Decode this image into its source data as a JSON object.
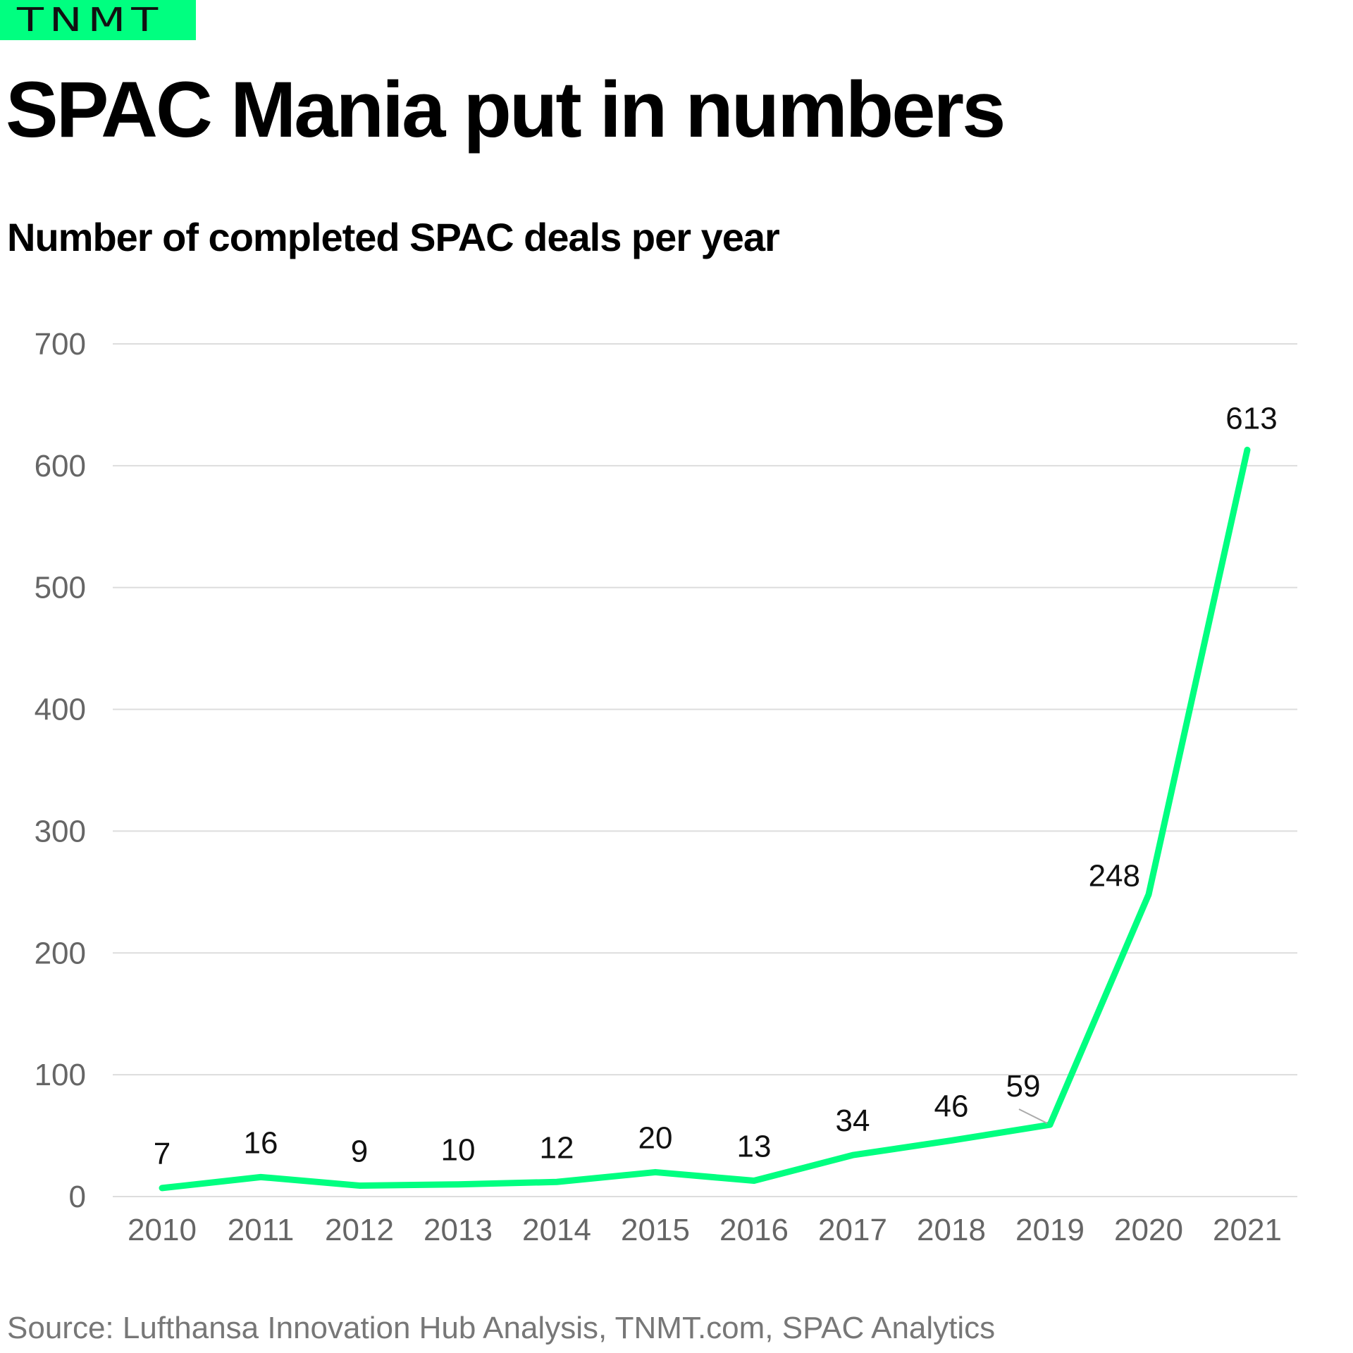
{
  "logo": {
    "text": "TNMT",
    "bg_color": "#00ff80"
  },
  "title": "SPAC Mania put in numbers",
  "subtitle": "Number of completed SPAC deals per year",
  "source": "Source: Lufthansa Innovation Hub Analysis, TNMT.com, SPAC Analytics",
  "colors": {
    "line": "#00ff80",
    "grid": "#dddddd",
    "axis_text": "#666666",
    "label_text": "#111111"
  },
  "chart_data": {
    "type": "line",
    "title": "SPAC Mania put in numbers",
    "subtitle": "Number of completed SPAC deals per year",
    "xlabel": "",
    "ylabel": "",
    "categories": [
      "2010",
      "2011",
      "2012",
      "2013",
      "2014",
      "2015",
      "2016",
      "2017",
      "2018",
      "2019",
      "2020",
      "2021"
    ],
    "series": [
      {
        "name": "Completed SPAC deals",
        "values": [
          7,
          16,
          9,
          10,
          12,
          20,
          13,
          34,
          46,
          59,
          248,
          613
        ]
      }
    ],
    "ylim": [
      0,
      700
    ],
    "yticks": [
      0,
      100,
      200,
      300,
      400,
      500,
      600,
      700
    ],
    "grid": true,
    "legend": "none",
    "data_labels": true
  }
}
